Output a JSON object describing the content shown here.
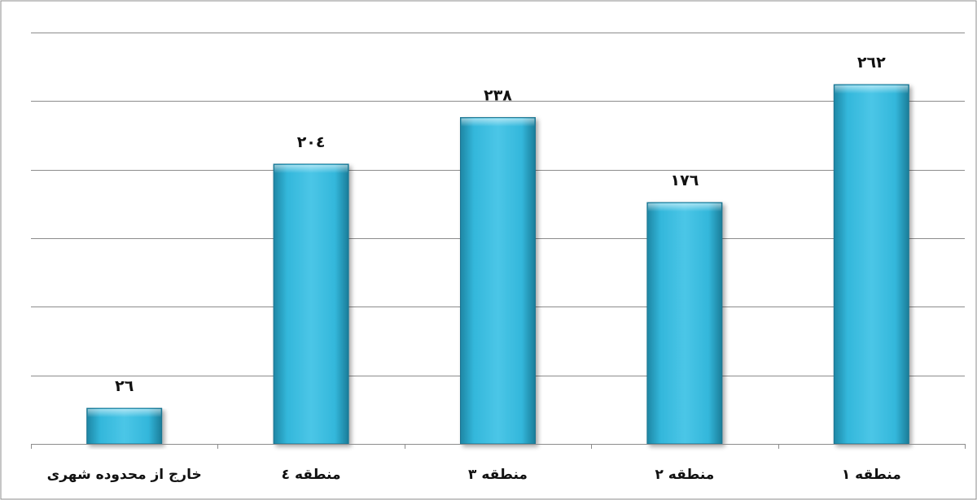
{
  "chart_data": {
    "type": "bar",
    "categories": [
      "خارج از محدوده شهری",
      "منطقه ٤",
      "منطقه ٣",
      "منطقه ٢",
      "منطقه ١"
    ],
    "values": [
      26,
      204,
      238,
      176,
      262
    ],
    "data_labels": [
      "٢٦",
      "٢٠٤",
      "٢٣٨",
      "١٧٦",
      "٢٦٢"
    ],
    "ylim": [
      0,
      300
    ],
    "y_tick_step": 50,
    "grid": true,
    "legend": "none",
    "title": "",
    "xlabel": "",
    "ylabel": "",
    "colors": {
      "bar_light": "#4cc5e6",
      "bar_mid": "#2fb2d6",
      "bar_dark": "#1d7f9c",
      "grid": "#8c8c8c",
      "frame": "#8c8c8c"
    }
  }
}
